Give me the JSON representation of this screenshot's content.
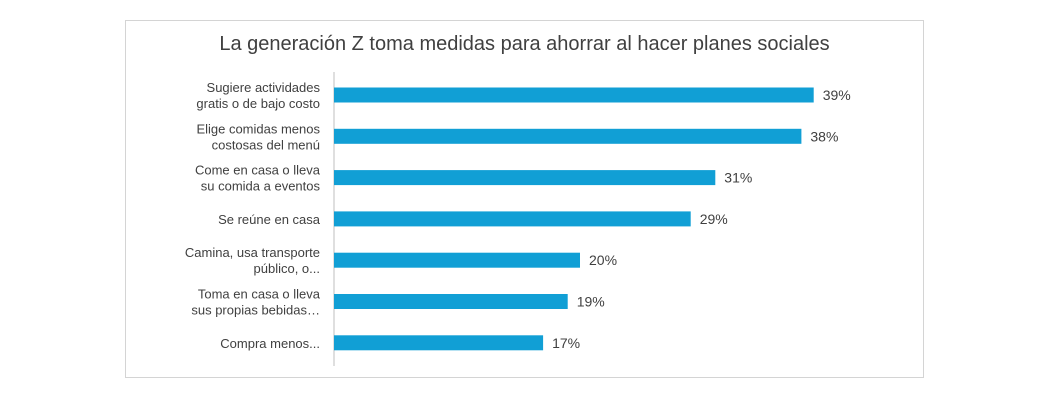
{
  "chart_data": {
    "type": "bar",
    "orientation": "horizontal",
    "title": "La generación Z toma medidas para ahorrar al hacer planes sociales",
    "categories": [
      [
        "Sugiere actividades",
        "gratis o de bajo costo"
      ],
      [
        "Elige comidas menos",
        "costosas del menú"
      ],
      [
        "Come en casa o lleva",
        "su comida a eventos"
      ],
      [
        "Se reúne en casa"
      ],
      [
        "Camina, usa transporte",
        "público, o..."
      ],
      [
        "Toma en casa o lleva",
        "sus propias bebidas…"
      ],
      [
        "Compra menos..."
      ]
    ],
    "values": [
      39,
      38,
      31,
      29,
      20,
      19,
      17
    ],
    "value_labels": [
      "39%",
      "38%",
      "31%",
      "29%",
      "20%",
      "19%",
      "17%"
    ],
    "unit": "%",
    "xlim": [
      0,
      40
    ],
    "grid": false,
    "colors": {
      "bar": "#119fd5",
      "text": "#404040",
      "axis": "#bfbfbf"
    }
  }
}
